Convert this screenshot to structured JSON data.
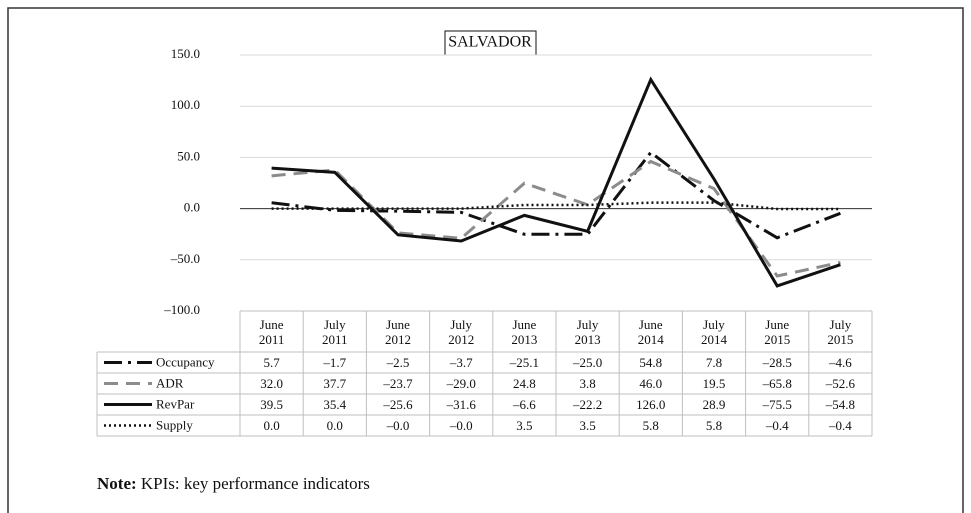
{
  "chart_data": {
    "type": "line",
    "title": "SALVADOR",
    "categories": [
      "June 2011",
      "July 2011",
      "June 2012",
      "July 2012",
      "June 2013",
      "July 2013",
      "June 2014",
      "July 2014",
      "June 2015",
      "July 2015"
    ],
    "ylim": [
      -100,
      150
    ],
    "yticks": [
      {
        "value": -100,
        "label": "–100.0"
      },
      {
        "value": -50,
        "label": "–50.0"
      },
      {
        "value": 0,
        "label": "0.0"
      },
      {
        "value": 50,
        "label": "50.0"
      },
      {
        "value": 100,
        "label": "100.0"
      },
      {
        "value": 150,
        "label": "150.0"
      }
    ],
    "grid": true,
    "series": [
      {
        "name": "Occupancy",
        "color": "#111111",
        "dash": "dashdot",
        "values": [
          5.7,
          -1.7,
          -2.5,
          -3.7,
          -25.1,
          -25.0,
          54.8,
          7.8,
          -28.5,
          -4.6
        ],
        "value_labels": [
          "5.7",
          "–1.7",
          "–2.5",
          "–3.7",
          "–25.1",
          "–25.0",
          "54.8",
          "7.8",
          "–28.5",
          "–4.6"
        ]
      },
      {
        "name": "ADR",
        "color": "#8c8c8c",
        "dash": "dash",
        "values": [
          32.0,
          37.7,
          -23.7,
          -29.0,
          24.8,
          3.8,
          46.0,
          19.5,
          -65.8,
          -52.6
        ],
        "value_labels": [
          "32.0",
          "37.7",
          "–23.7",
          "–29.0",
          "24.8",
          "3.8",
          "46.0",
          "19.5",
          "–65.8",
          "–52.6"
        ]
      },
      {
        "name": "RevPar",
        "color": "#111111",
        "dash": "solid",
        "values": [
          39.5,
          35.4,
          -25.6,
          -31.6,
          -6.6,
          -22.2,
          126.0,
          28.9,
          -75.5,
          -54.8
        ],
        "value_labels": [
          "39.5",
          "35.4",
          "–25.6",
          "–31.6",
          "–6.6",
          "–22.2",
          "126.0",
          "28.9",
          "–75.5",
          "–54.8"
        ]
      },
      {
        "name": "Supply",
        "color": "#111111",
        "dash": "dot",
        "values": [
          0.0,
          0.0,
          -0.0,
          -0.0,
          3.5,
          3.5,
          5.8,
          5.8,
          -0.4,
          -0.4
        ],
        "value_labels": [
          "0.0",
          "0.0",
          "–0.0",
          "–0.0",
          "3.5",
          "3.5",
          "5.8",
          "5.8",
          "–0.4",
          "–0.4"
        ]
      }
    ]
  },
  "note": {
    "label": "Note:",
    "text": "KPIs: key performance indicators"
  }
}
